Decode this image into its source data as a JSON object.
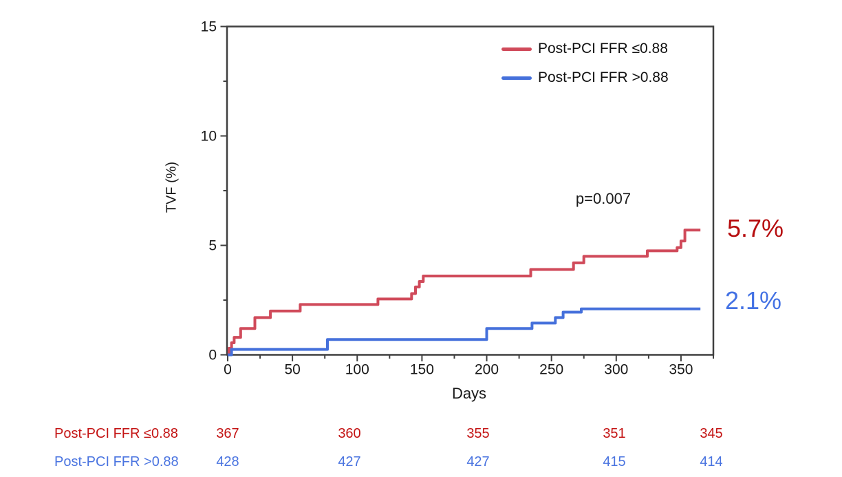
{
  "figure": {
    "background": "#ffffff"
  },
  "chart_data": {
    "type": "line",
    "variant": "kaplan-meier-cumulative-incidence-step",
    "title": "",
    "xlabel": "Days",
    "ylabel": "TVF (%)",
    "xlim": [
      0,
      375
    ],
    "ylim": [
      0,
      15
    ],
    "x_major_ticks": [
      0,
      50,
      100,
      150,
      200,
      250,
      300,
      350
    ],
    "x_minor_ticks": [
      25,
      75,
      125,
      175,
      225,
      275,
      325,
      375
    ],
    "y_major_ticks": [
      0,
      5,
      10,
      15
    ],
    "y_minor_ticks": [
      2.5,
      7.5,
      12.5
    ],
    "grid": false,
    "legend_position": "top-right-inside",
    "axis_color": "#3f3f3f",
    "text_color": "#1a1a1a",
    "annotation": {
      "p_value": "p=0.007"
    },
    "series": [
      {
        "name": "Post-PCI FFR ≤0.88",
        "color": "#d04a5a",
        "end_label": "5.7%",
        "end_label_color": "#b60d0f",
        "steps_day_percent": [
          [
            0,
            0
          ],
          [
            1,
            0.3
          ],
          [
            3,
            0.55
          ],
          [
            5,
            0.8
          ],
          [
            10,
            1.2
          ],
          [
            21,
            1.7
          ],
          [
            33,
            2.0
          ],
          [
            56,
            2.3
          ],
          [
            116,
            2.55
          ],
          [
            142,
            2.8
          ],
          [
            145,
            3.1
          ],
          [
            148,
            3.35
          ],
          [
            151,
            3.6
          ],
          [
            234,
            3.9
          ],
          [
            267,
            4.2
          ],
          [
            275,
            4.5
          ],
          [
            324,
            4.75
          ],
          [
            347,
            4.9
          ],
          [
            350,
            5.2
          ],
          [
            353,
            5.7
          ],
          [
            365,
            5.7
          ]
        ]
      },
      {
        "name": "Post-PCI FFR >0.88",
        "color": "#4570db",
        "end_label": "2.1%",
        "end_label_color": "#4472e4",
        "steps_day_percent": [
          [
            0,
            0
          ],
          [
            3,
            0.25
          ],
          [
            77,
            0.7
          ],
          [
            200,
            1.2
          ],
          [
            235,
            1.45
          ],
          [
            253,
            1.7
          ],
          [
            259,
            1.95
          ],
          [
            273,
            2.1
          ],
          [
            365,
            2.1
          ]
        ]
      }
    ],
    "risk_table": {
      "rows": [
        {
          "label": "Post-PCI FFR ≤0.88",
          "color": "#c41414",
          "values": [
            "367",
            "360",
            "355",
            "351",
            "345"
          ]
        },
        {
          "label": "Post-PCI FFR >0.88",
          "color": "#4a74e0",
          "values": [
            "428",
            "427",
            "427",
            "415",
            "414"
          ]
        }
      ]
    }
  }
}
